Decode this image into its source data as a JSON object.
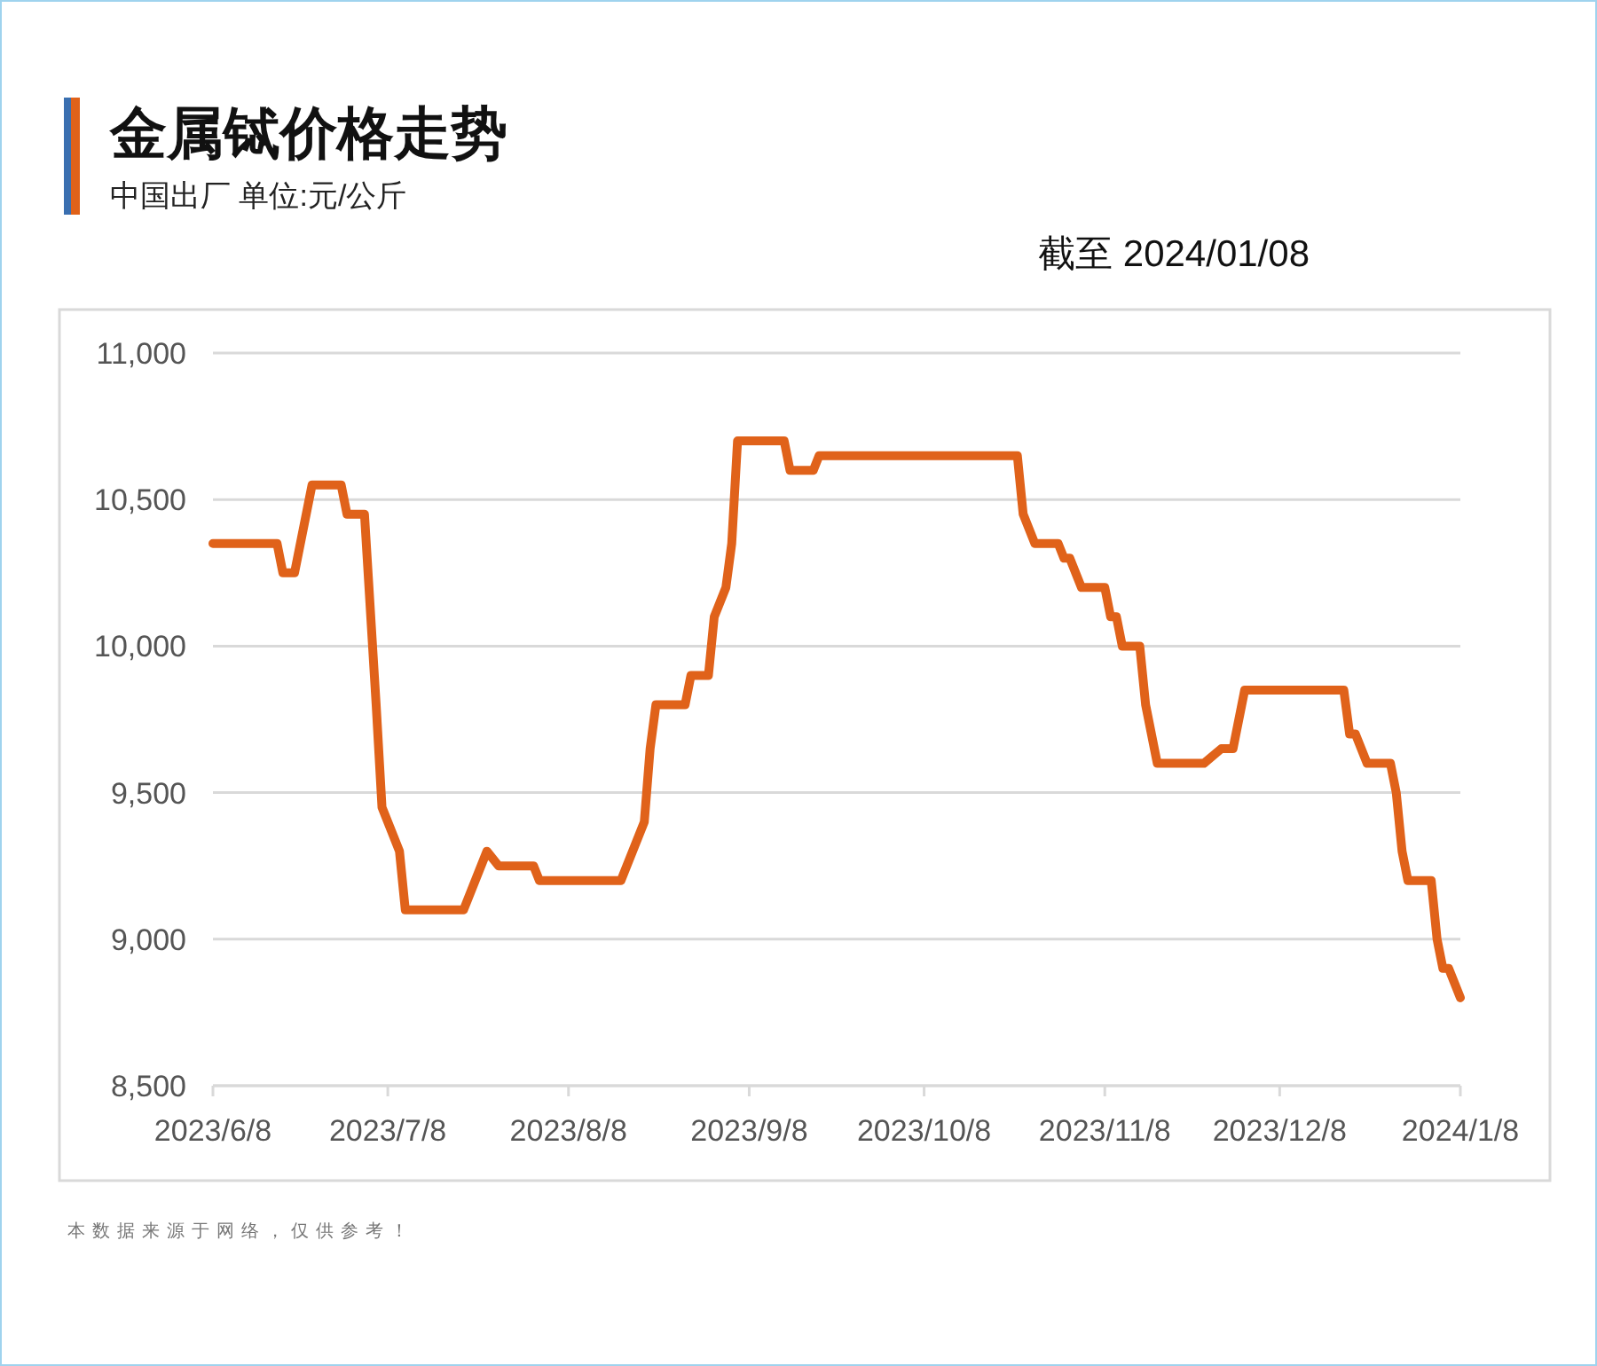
{
  "chart_data": {
    "type": "line",
    "title": "金属铽价格走势",
    "subtitle": "中国出厂  单位:元/公斤",
    "annotations": [
      "截至 2024/01/08",
      "本数据来源于网络，仅供参考！"
    ],
    "x": [
      "2023-06-08",
      "2023-06-19",
      "2023-06-20",
      "2023-06-22",
      "2023-06-25",
      "2023-06-30",
      "2023-07-01",
      "2023-07-04",
      "2023-07-06",
      "2023-07-07",
      "2023-07-10",
      "2023-07-11",
      "2023-07-21",
      "2023-07-25",
      "2023-07-27",
      "2023-08-02",
      "2023-08-03",
      "2023-08-17",
      "2023-08-21",
      "2023-08-22",
      "2023-08-23",
      "2023-08-28",
      "2023-08-29",
      "2023-09-01",
      "2023-09-02",
      "2023-09-04",
      "2023-09-05",
      "2023-09-06",
      "2023-09-14",
      "2023-09-15",
      "2023-09-19",
      "2023-09-20",
      "2023-10-24",
      "2023-10-25",
      "2023-10-27",
      "2023-10-31",
      "2023-11-01",
      "2023-11-02",
      "2023-11-04",
      "2023-11-08",
      "2023-11-09",
      "2023-11-10",
      "2023-11-11",
      "2023-11-14",
      "2023-11-15",
      "2023-11-17",
      "2023-11-25",
      "2023-11-28",
      "2023-11-30",
      "2023-12-02",
      "2023-12-19",
      "2023-12-20",
      "2023-12-21",
      "2023-12-23",
      "2023-12-27",
      "2023-12-28",
      "2023-12-29",
      "2023-12-30",
      "2024-01-03",
      "2024-01-04",
      "2024-01-05",
      "2024-01-06",
      "2024-01-08"
    ],
    "series": [
      {
        "color": "#e0621a",
        "values": [
          10350,
          10350,
          10250,
          10250,
          10550,
          10550,
          10450,
          10450,
          9800,
          9450,
          9300,
          9100,
          9100,
          9300,
          9250,
          9250,
          9200,
          9200,
          9400,
          9650,
          9800,
          9800,
          9900,
          9900,
          10100,
          10200,
          10350,
          10700,
          10700,
          10600,
          10600,
          10650,
          10650,
          10450,
          10350,
          10350,
          10300,
          10300,
          10200,
          10200,
          10100,
          10100,
          10000,
          10000,
          9800,
          9600,
          9600,
          9650,
          9650,
          9850,
          9850,
          9700,
          9700,
          9600,
          9600,
          9500,
          9300,
          9200,
          9200,
          9000,
          8900,
          8900,
          8800
        ]
      }
    ],
    "xlim": [
      "2023-06-08",
      "2024-01-08"
    ],
    "xticks": [
      {
        "value": "2023-06-08",
        "label": "2023/6/8"
      },
      {
        "value": "2023-07-08",
        "label": "2023/7/8"
      },
      {
        "value": "2023-08-08",
        "label": "2023/8/8"
      },
      {
        "value": "2023-09-08",
        "label": "2023/9/8"
      },
      {
        "value": "2023-10-08",
        "label": "2023/10/8"
      },
      {
        "value": "2023-11-08",
        "label": "2023/11/8"
      },
      {
        "value": "2023-12-08",
        "label": "2023/12/8"
      },
      {
        "value": "2024-01-08",
        "label": "2024/1/8"
      }
    ],
    "ylim": [
      8500,
      11000
    ],
    "yticks": [
      {
        "value": 8500,
        "label": "8,500"
      },
      {
        "value": 9000,
        "label": "9,000"
      },
      {
        "value": 9500,
        "label": "9,500"
      },
      {
        "value": 10000,
        "label": "10,000"
      },
      {
        "value": 10500,
        "label": "10,500"
      },
      {
        "value": 11000,
        "label": "11,000"
      }
    ],
    "grid": "y",
    "marker": "none",
    "line_style": "solid"
  }
}
